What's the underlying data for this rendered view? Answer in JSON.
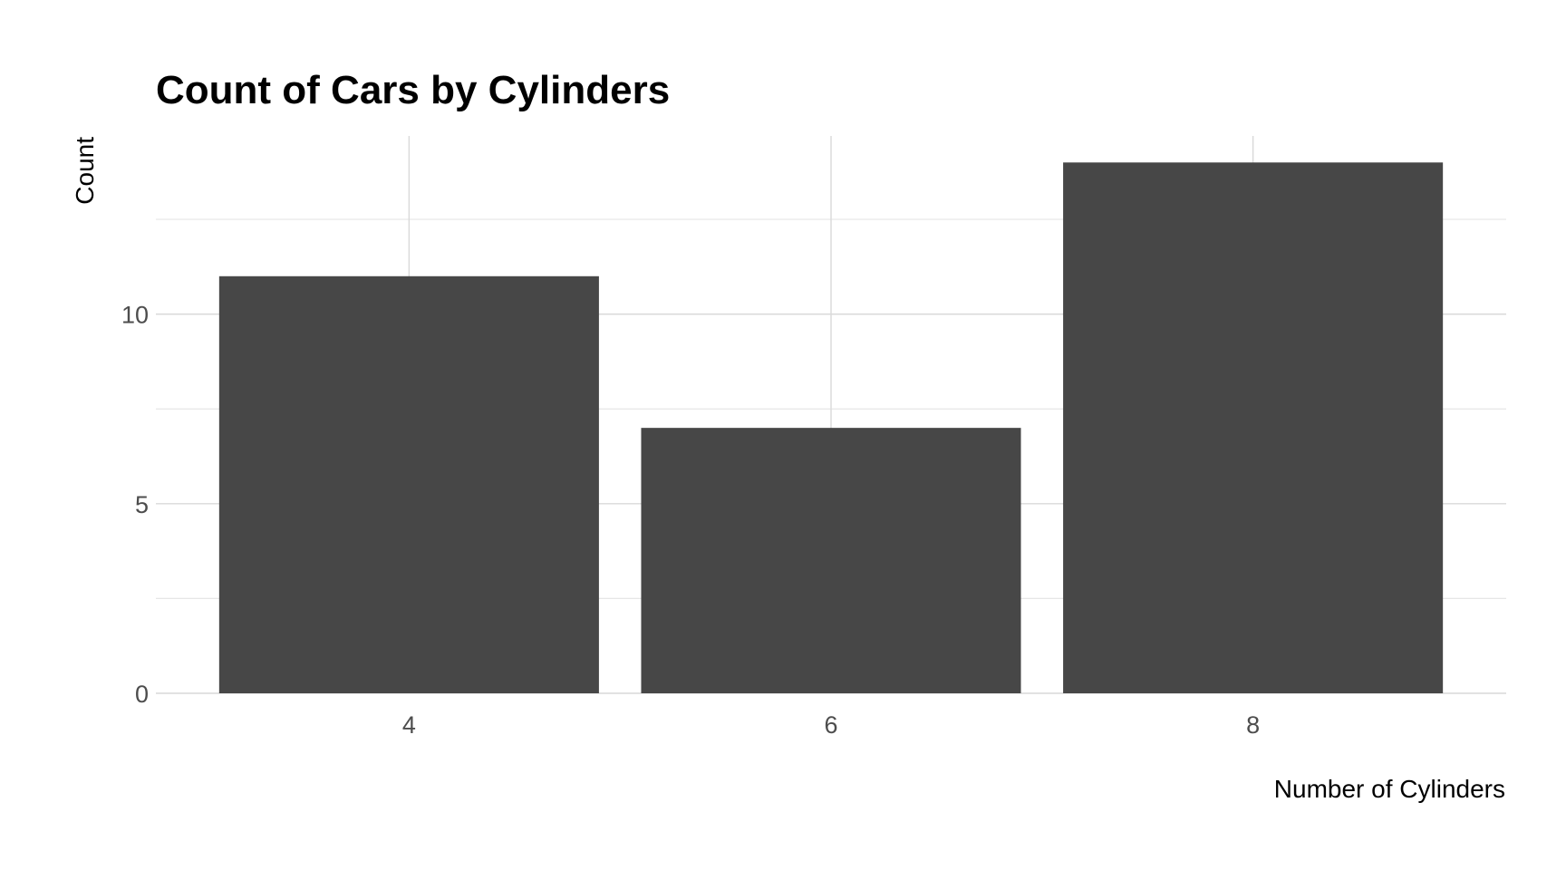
{
  "chart_data": {
    "type": "bar",
    "title": "Count of Cars by Cylinders",
    "xlabel": "Number of Cylinders",
    "ylabel": "Count",
    "categories": [
      "4",
      "6",
      "8"
    ],
    "values": [
      11,
      7,
      14
    ],
    "yticks": [
      "0",
      "5",
      "10"
    ],
    "ylim": [
      0,
      14.7
    ],
    "grid": true,
    "legend": "none",
    "bar_color": "#474747",
    "grid_color": "#d9d9d9",
    "background": "#ffffff"
  }
}
